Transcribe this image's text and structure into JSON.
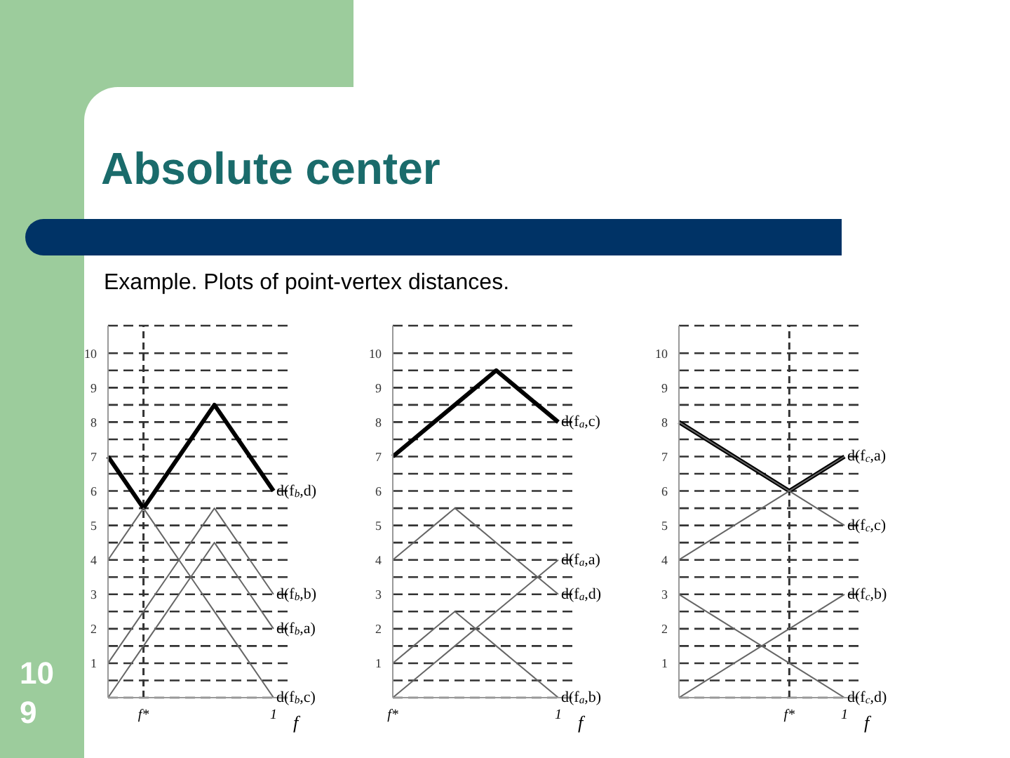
{
  "chart_data": [
    {
      "type": "line",
      "title": "Absolute center",
      "subtitle": "Example. Plots of point-vertex distances.",
      "annotations": [
        "109"
      ],
      "xlabel": "f",
      "categories": [
        null,
        null,
        null,
        "f*",
        null,
        null,
        null,
        null,
        null,
        null,
        null,
        null,
        null,
        null,
        "1"
      ],
      "ylim": [
        0,
        10.8
      ],
      "yticks": [
        {
          "value": 0,
          "label": null
        },
        {
          "value": 0.5,
          "label": null
        },
        1,
        {
          "value": 1.5,
          "label": null
        },
        2,
        {
          "value": 2.5,
          "label": null
        },
        3,
        {
          "value": 3.5,
          "label": null
        },
        4,
        {
          "value": 4.5,
          "label": null
        },
        5,
        {
          "value": 5.5,
          "label": null
        },
        6,
        {
          "value": 6.5,
          "label": null
        },
        7,
        {
          "value": 7.5,
          "label": null
        },
        8,
        {
          "value": 8.5,
          "label": null
        },
        9,
        {
          "value": 9.5,
          "label": null
        },
        10
      ],
      "grid": "y",
      "marker": "none",
      "line_style": "solid",
      "ref_lines": [
        {
          "axis": "x",
          "value": "f*",
          "line_style": "dashed",
          "color": "#333333"
        }
      ],
      "series": [
        {
          "name": "d(f$_{b}$,d)",
          "color": "#000000",
          "values": [
            7,
            6.5,
            6,
            5.5,
            6,
            6.5,
            7,
            7.5,
            8,
            8.5,
            8,
            7.5,
            7,
            6.5,
            6
          ]
        },
        {
          "name": "d(f$_{b}$,b)",
          "color": "#666666",
          "values": [
            1,
            1.5,
            2,
            2.5,
            3,
            3.5,
            4,
            4.5,
            5,
            5.5,
            5,
            4.5,
            4,
            3.5,
            3
          ]
        },
        {
          "name": "d(f$_{b}$,a)",
          "color": "#666666",
          "values": [
            0,
            0.5,
            1,
            1.5,
            2,
            2.5,
            3,
            3.5,
            4,
            4.5,
            4,
            3.5,
            3,
            2.5,
            2
          ]
        },
        {
          "name": "d(f$_{b}$,c)",
          "color": "#666666",
          "values": [
            4,
            4.5,
            5,
            5.5,
            5,
            4.5,
            4,
            3.5,
            3,
            2.5,
            2,
            1.5,
            1,
            0.5,
            0
          ]
        }
      ]
    },
    {
      "type": "line",
      "xlabel": "f",
      "categories": [
        "f*",
        null,
        null,
        null,
        null,
        null,
        null,
        null,
        "1"
      ],
      "ylim": [
        0,
        10.8
      ],
      "yticks": [
        {
          "value": 0,
          "label": null
        },
        {
          "value": 0.5,
          "label": null
        },
        1,
        {
          "value": 1.5,
          "label": null
        },
        2,
        {
          "value": 2.5,
          "label": null
        },
        3,
        {
          "value": 3.5,
          "label": null
        },
        4,
        {
          "value": 4.5,
          "label": null
        },
        5,
        {
          "value": 5.5,
          "label": null
        },
        6,
        {
          "value": 6.5,
          "label": null
        },
        7,
        {
          "value": 7.5,
          "label": null
        },
        8,
        {
          "value": 8.5,
          "label": null
        },
        9,
        {
          "value": 9.5,
          "label": null
        },
        10
      ],
      "grid": "y",
      "marker": "none",
      "line_style": "solid",
      "series": [
        {
          "name": "d(f$_{a}$,c)",
          "color": "#000000",
          "values": [
            7,
            7.5,
            8,
            8.5,
            9,
            9.5,
            9,
            8.5,
            8
          ]
        },
        {
          "name": "d(f$_{a}$,a)",
          "color": "#666666",
          "values": [
            0,
            0.5,
            1,
            1.5,
            2,
            2.5,
            3,
            3.5,
            4
          ]
        },
        {
          "name": "d(f$_{a}$,d)",
          "color": "#666666",
          "values": [
            4,
            4.5,
            5,
            5.5,
            5,
            4.5,
            4,
            3.5,
            3
          ]
        },
        {
          "name": "d(f$_{a}$,b)",
          "color": "#666666",
          "values": [
            1,
            1.5,
            2,
            2.5,
            2,
            1.5,
            1,
            0.5,
            0
          ]
        }
      ]
    },
    {
      "type": "line",
      "xlabel": "f",
      "categories": [
        null,
        null,
        null,
        null,
        "f*",
        null,
        "1"
      ],
      "ylim": [
        0,
        10.8
      ],
      "yticks": [
        {
          "value": 0,
          "label": null
        },
        {
          "value": 0.5,
          "label": null
        },
        1,
        {
          "value": 1.5,
          "label": null
        },
        2,
        {
          "value": 2.5,
          "label": null
        },
        3,
        {
          "value": 3.5,
          "label": null
        },
        4,
        {
          "value": 4.5,
          "label": null
        },
        5,
        {
          "value": 5.5,
          "label": null
        },
        6,
        {
          "value": 6.5,
          "label": null
        },
        7,
        {
          "value": 7.5,
          "label": null
        },
        8,
        {
          "value": 8.5,
          "label": null
        },
        9,
        {
          "value": 9.5,
          "label": null
        },
        10
      ],
      "grid": "y",
      "marker": "none",
      "line_style": "solid",
      "ref_lines": [
        {
          "axis": "x",
          "value": "f*",
          "line_style": "dashed",
          "color": "#333333"
        }
      ],
      "series": [
        {
          "color": "#000000",
          "values": [
            8,
            7.5,
            7,
            6.5,
            6,
            6.5,
            7
          ]
        },
        {
          "name": "d(f$_{c}$,a)",
          "color": "#666666",
          "values": [
            4,
            4.5,
            5,
            5.5,
            6,
            6.5,
            7
          ]
        },
        {
          "name": "d(f$_{c}$,c)",
          "color": "#666666",
          "values": [
            8,
            7.5,
            7,
            6.5,
            6,
            5.5,
            5
          ]
        },
        {
          "name": "d(f$_{c}$,b)",
          "color": "#666666",
          "values": [
            0,
            0.5,
            1,
            1.5,
            2,
            2.5,
            3
          ]
        },
        {
          "name": "d(f$_{c}$,d)",
          "color": "#666666",
          "values": [
            3,
            2.5,
            2,
            1.5,
            1,
            0.5,
            0
          ]
        }
      ]
    }
  ]
}
